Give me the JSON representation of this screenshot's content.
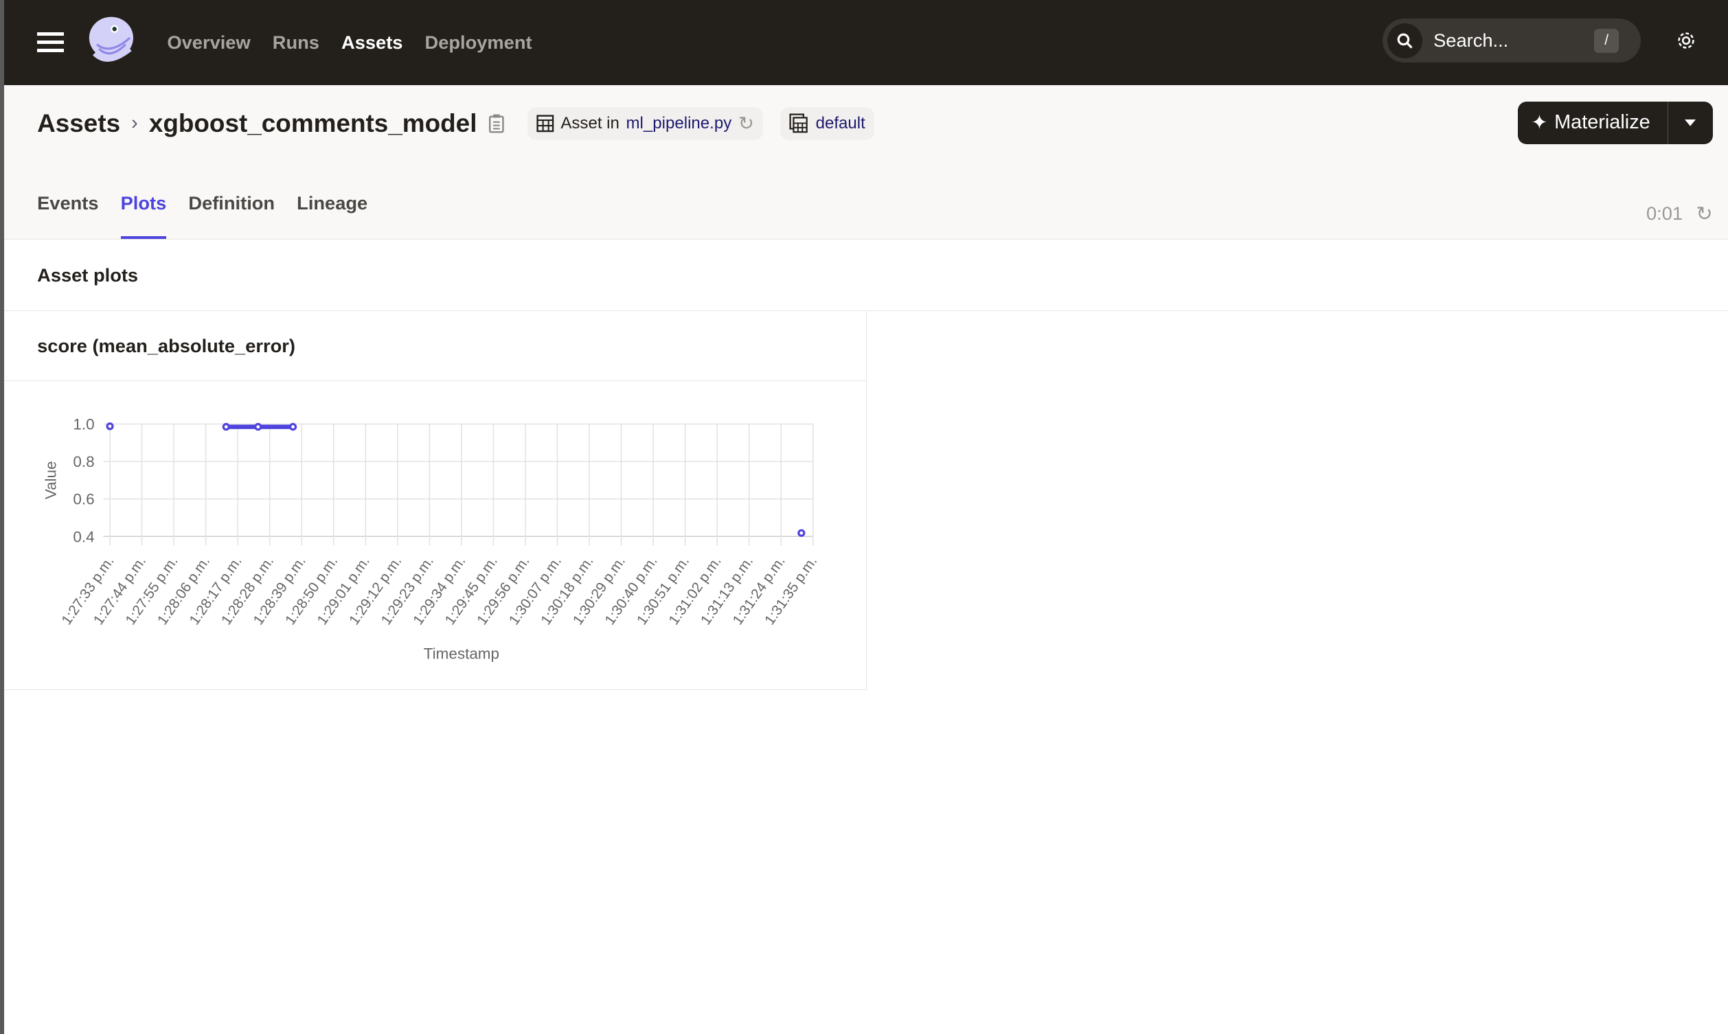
{
  "nav": {
    "items": [
      {
        "label": "Overview",
        "active": false
      },
      {
        "label": "Runs",
        "active": false
      },
      {
        "label": "Assets",
        "active": true
      },
      {
        "label": "Deployment",
        "active": false
      }
    ],
    "search_placeholder": "Search...",
    "search_shortcut": "/"
  },
  "header": {
    "breadcrumb_root": "Assets",
    "asset_name": "xgboost_comments_model",
    "asset_in_label": "Asset in",
    "code_location": "ml_pipeline.py",
    "group": "default",
    "materialize_label": "Materialize",
    "tabs": [
      {
        "label": "Events",
        "active": false
      },
      {
        "label": "Plots",
        "active": true
      },
      {
        "label": "Definition",
        "active": false
      },
      {
        "label": "Lineage",
        "active": false
      }
    ],
    "timer": "0:01"
  },
  "section_title": "Asset plots",
  "colors": {
    "accent": "#4f43dd",
    "topbar": "#231f1b"
  },
  "chart_data": {
    "type": "line",
    "title": "score (mean_absolute_error)",
    "xlabel": "Timestamp",
    "ylabel": "Value",
    "ylim": [
      0.4,
      1.0
    ],
    "yticks": [
      "0.4",
      "0.6",
      "0.8",
      "1.0"
    ],
    "xlim": [
      "1:27:33 p.m.",
      "1:31:35 p.m."
    ],
    "xticks": [
      "1:27:33 p.m.",
      "1:27:44 p.m.",
      "1:27:55 p.m.",
      "1:28:06 p.m.",
      "1:28:17 p.m.",
      "1:28:28 p.m.",
      "1:28:39 p.m.",
      "1:28:50 p.m.",
      "1:29:01 p.m.",
      "1:29:12 p.m.",
      "1:29:23 p.m.",
      "1:29:34 p.m.",
      "1:29:45 p.m.",
      "1:29:56 p.m.",
      "1:30:07 p.m.",
      "1:30:18 p.m.",
      "1:30:29 p.m.",
      "1:30:40 p.m.",
      "1:30:51 p.m.",
      "1:31:02 p.m.",
      "1:31:13 p.m.",
      "1:31:24 p.m.",
      "1:31:35 p.m."
    ],
    "grid": true,
    "segments": [
      [
        {
          "x": "1:27:33 p.m.",
          "y": 0.988
        }
      ],
      [
        {
          "x": "1:28:13 p.m.",
          "y": 0.985
        },
        {
          "x": "1:28:24 p.m.",
          "y": 0.985
        },
        {
          "x": "1:28:36 p.m.",
          "y": 0.985
        }
      ],
      [
        {
          "x": "1:31:31 p.m.",
          "y": 0.418
        }
      ]
    ],
    "color": "#4f43dd"
  }
}
